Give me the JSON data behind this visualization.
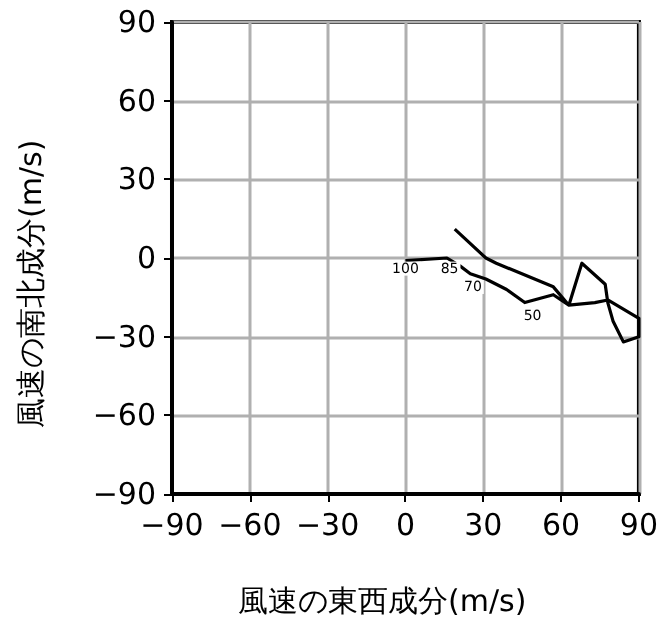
{
  "chart_data": {
    "type": "line",
    "xlabel": "風速の東西成分(m/s)",
    "ylabel": "風速の南北成分(m/s)",
    "xlim": [
      -90,
      90
    ],
    "ylim": [
      -90,
      90
    ],
    "xticks": [
      {
        "value": -90,
        "label": "−90"
      },
      {
        "value": -60,
        "label": "−60"
      },
      {
        "value": -30,
        "label": "−30"
      },
      0,
      30,
      60,
      90
    ],
    "yticks": [
      {
        "value": -90,
        "label": "−90"
      },
      {
        "value": -60,
        "label": "−60"
      },
      {
        "value": -30,
        "label": "−30"
      },
      0,
      30,
      60,
      90
    ],
    "grid": true,
    "marker": "none",
    "series": [
      {
        "color": "#000000",
        "x": [
          0,
          16,
          21,
          25,
          31,
          39,
          46,
          57,
          63,
          73,
          78,
          90,
          90,
          84,
          80,
          78,
          77,
          68,
          63,
          57,
          35,
          31,
          19
        ],
        "values": [
          -1,
          0,
          -3,
          -6,
          -8,
          -12,
          -17,
          -14,
          -18,
          -17,
          -16,
          -23,
          -30,
          -32,
          -24,
          -17,
          -10,
          -2,
          -18,
          -11,
          -2,
          0,
          11
        ]
      }
    ],
    "annotations": [
      {
        "text": "100",
        "x": 0,
        "y": -1
      },
      {
        "text": "85",
        "x": 17,
        "y": -1
      },
      {
        "text": "70",
        "x": 26,
        "y": -8
      },
      {
        "text": "50",
        "x": 49,
        "y": -19
      }
    ]
  }
}
